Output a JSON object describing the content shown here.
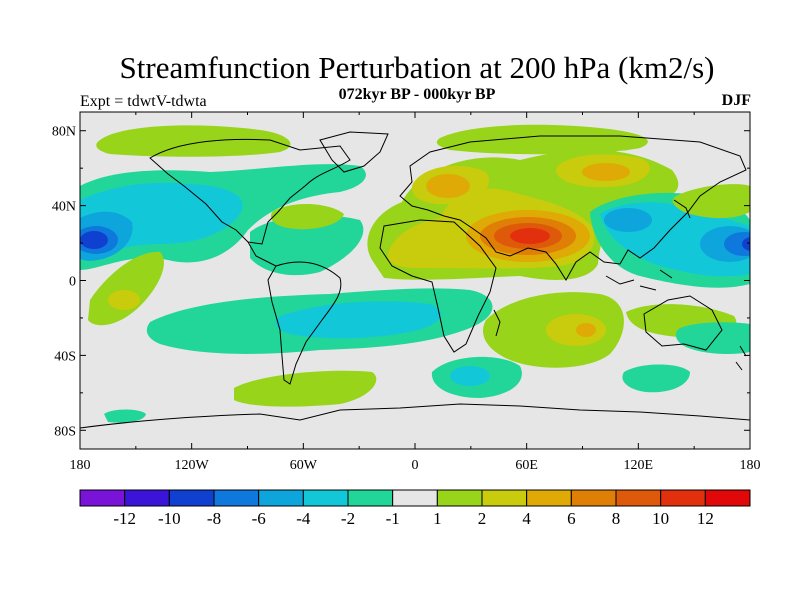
{
  "title": "Streamfunction Perturbation at 200 hPa (km2/s)",
  "subtitle": "072kyr BP - 000kyr BP",
  "left_label": "Expt = tdwtV-tdwta",
  "right_label": "DJF",
  "lat_ticks": [
    "80N",
    "40N",
    "0",
    "40S",
    "80S"
  ],
  "lon_ticks": [
    "180",
    "120W",
    "60W",
    "0",
    "60E",
    "120E",
    "180"
  ],
  "colorbar": {
    "labels": [
      "-12",
      "-10",
      "-8",
      "-6",
      "-4",
      "-2",
      "-1",
      "1",
      "2",
      "4",
      "6",
      "8",
      "10",
      "12"
    ],
    "colors": [
      "#7a13d8",
      "#3a14d8",
      "#1040d0",
      "#0f78dc",
      "#0ea5dc",
      "#12c8d8",
      "#22d69a",
      "#e6e6e6",
      "#98d41a",
      "#c8cc0c",
      "#e0aa06",
      "#e07f06",
      "#de5a0a",
      "#e2300e",
      "#e00808"
    ]
  },
  "chart_data": {
    "type": "filled-contour-map",
    "variable": "Streamfunction Perturbation at 200 hPa",
    "units": "km2/s",
    "season": "DJF",
    "experiment": "tdwtV-tdwta",
    "period": "072kyr BP - 000kyr BP",
    "x_range": [
      -180,
      180
    ],
    "y_range": [
      -90,
      90
    ],
    "contour_levels": [
      -12,
      -10,
      -8,
      -6,
      -4,
      -2,
      -1,
      1,
      2,
      4,
      6,
      8,
      10,
      12
    ],
    "features": [
      {
        "region": "South Asia / Middle East",
        "lon": 60,
        "lat": 25,
        "value": 10
      },
      {
        "region": "Eurasia",
        "lon": 20,
        "lat": 45,
        "value": 4
      },
      {
        "region": "Central Asia",
        "lon": 90,
        "lat": 52,
        "value": 4
      },
      {
        "region": "Central Pacific",
        "lon": -170,
        "lat": 20,
        "value": -8
      },
      {
        "region": "Western Pacific",
        "lon": 165,
        "lat": 20,
        "value": -8
      },
      {
        "region": "East Asia",
        "lon": 110,
        "lat": 35,
        "value": -6
      },
      {
        "region": "North America",
        "lon": -100,
        "lat": 40,
        "value": -2
      },
      {
        "region": "Southern Indian Ocean",
        "lon": 85,
        "lat": -25,
        "value": 4
      },
      {
        "region": "South Atlantic",
        "lon": -30,
        "lat": -20,
        "value": -2
      },
      {
        "region": "Southern Ocean",
        "lon": 25,
        "lat": -48,
        "value": -4
      }
    ]
  }
}
